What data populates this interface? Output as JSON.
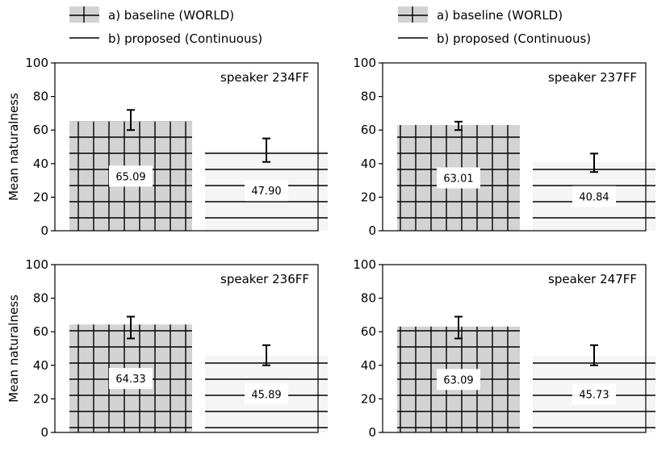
{
  "legend": {
    "entries": [
      {
        "series": "baseline",
        "label": "a) baseline (WORLD)"
      },
      {
        "series": "proposed",
        "label": "b) proposed (Continuous)"
      }
    ]
  },
  "colors": {
    "baseline_fill": "#d3d3d3",
    "proposed_fill": "#f5f5f5",
    "hatch_line": "#000000",
    "axis": "#000000"
  },
  "chart_data": [
    {
      "type": "bar",
      "title": "speaker 234FF",
      "ylabel": "Mean naturalness",
      "ylim": [
        0,
        100
      ],
      "yticks": [
        "0",
        "20",
        "40",
        "60",
        "80",
        "100"
      ],
      "series": [
        {
          "name": "a) baseline (WORLD)",
          "value": 65.09,
          "value_label": "65.09",
          "err_low": 60,
          "err_high": 72
        },
        {
          "name": "b) proposed (Continuous)",
          "value": 47.9,
          "value_label": "47.90",
          "err_low": 41,
          "err_high": 55
        }
      ]
    },
    {
      "type": "bar",
      "title": "speaker 237FF",
      "ylabel": "",
      "ylim": [
        0,
        100
      ],
      "yticks": [
        "0",
        "20",
        "40",
        "60",
        "80",
        "100"
      ],
      "series": [
        {
          "name": "a) baseline (WORLD)",
          "value": 63.01,
          "value_label": "63.01",
          "err_low": 60,
          "err_high": 65
        },
        {
          "name": "b) proposed (Continuous)",
          "value": 40.84,
          "value_label": "40.84",
          "err_low": 35,
          "err_high": 46
        }
      ]
    },
    {
      "type": "bar",
      "title": "speaker 236FF",
      "ylabel": "Mean naturalness",
      "ylim": [
        0,
        100
      ],
      "yticks": [
        "0",
        "20",
        "40",
        "60",
        "80",
        "100"
      ],
      "series": [
        {
          "name": "a) baseline (WORLD)",
          "value": 64.33,
          "value_label": "64.33",
          "err_low": 56,
          "err_high": 69
        },
        {
          "name": "b) proposed (Continuous)",
          "value": 45.89,
          "value_label": "45.89",
          "err_low": 40,
          "err_high": 52
        }
      ]
    },
    {
      "type": "bar",
      "title": "speaker 247FF",
      "ylabel": "",
      "ylim": [
        0,
        100
      ],
      "yticks": [
        "0",
        "20",
        "40",
        "60",
        "80",
        "100"
      ],
      "series": [
        {
          "name": "a) baseline (WORLD)",
          "value": 63.09,
          "value_label": "63.09",
          "err_low": 56,
          "err_high": 69
        },
        {
          "name": "b) proposed (Continuous)",
          "value": 45.73,
          "value_label": "45.73",
          "err_low": 40,
          "err_high": 52
        }
      ]
    }
  ]
}
